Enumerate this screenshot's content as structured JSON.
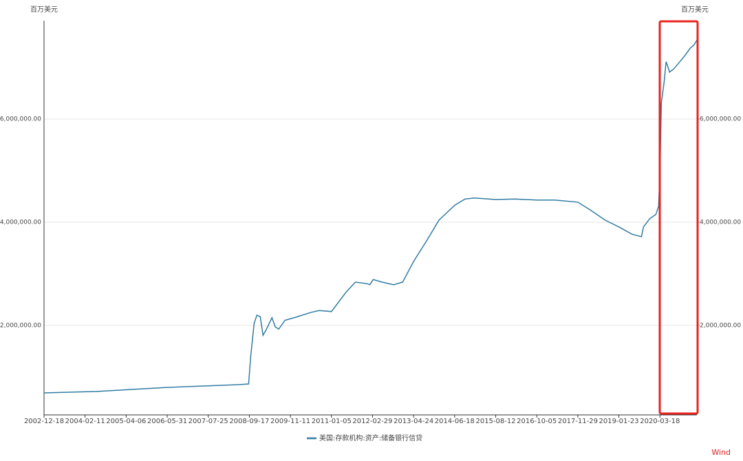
{
  "chart_data": {
    "type": "line",
    "y_label": "百万美元",
    "y2_label": "百万美元",
    "source": "Wind",
    "x": [
      "2002-12-18",
      "2004-06-02",
      "2005-06-01",
      "2006-06-07",
      "2007-06-06",
      "2008-06-04",
      "2008-09-10",
      "2008-10-01",
      "2008-11-05",
      "2008-12-03",
      "2009-01-07",
      "2009-02-04",
      "2009-03-04",
      "2009-05-06",
      "2009-06-10",
      "2009-07-15",
      "2009-09-16",
      "2010-01-06",
      "2010-06-02",
      "2010-09-01",
      "2011-01-05",
      "2011-06-01",
      "2011-09-07",
      "2012-01-04",
      "2012-02-01",
      "2012-03-07",
      "2012-06-06",
      "2012-10-03",
      "2013-01-02",
      "2013-04-24",
      "2013-09-04",
      "2014-01-08",
      "2014-06-18",
      "2014-10-01",
      "2015-01-07",
      "2015-08-12",
      "2016-03-02",
      "2016-10-05",
      "2017-04-05",
      "2017-11-29",
      "2018-04-04",
      "2018-09-05",
      "2019-01-23",
      "2019-06-05",
      "2019-09-11",
      "2019-10-02",
      "2019-12-04",
      "2020-02-05",
      "2020-03-04",
      "2020-03-18",
      "2020-04-01",
      "2020-04-29",
      "2020-05-20",
      "2020-06-03",
      "2020-06-24",
      "2020-08-05",
      "2020-10-07",
      "2020-12-02",
      "2021-01-20",
      "2021-03-03",
      "2021-03-31"
    ],
    "series": [
      {
        "name": "美国:存款机构:资产:储备银行信贷",
        "color": "#2f7ba3",
        "values": [
          693000,
          720000,
          760000,
          800000,
          827000,
          853000,
          867000,
          1400000,
          2040000,
          2200000,
          2170000,
          1810000,
          1900000,
          2150000,
          1970000,
          1930000,
          2100000,
          2160000,
          2250000,
          2290000,
          2270000,
          2640000,
          2840000,
          2810000,
          2790000,
          2890000,
          2840000,
          2790000,
          2840000,
          3240000,
          3640000,
          4040000,
          4330000,
          4450000,
          4470000,
          4440000,
          4450000,
          4430000,
          4430000,
          4390000,
          4240000,
          4040000,
          3910000,
          3770000,
          3720000,
          3910000,
          4070000,
          4150000,
          4310000,
          4970000,
          6310000,
          6710000,
          7110000,
          7040000,
          6910000,
          6970000,
          7110000,
          7240000,
          7370000,
          7440000,
          7530000
        ]
      }
    ],
    "xlim": [
      "2002-12-18",
      "2021-03-31"
    ],
    "xticks": [
      "2002-12-18",
      "2004-02-11",
      "2005-04-06",
      "2006-05-31",
      "2007-07-25",
      "2008-09-17",
      "2009-11-11",
      "2011-01-05",
      "2012-02-29",
      "2013-04-24",
      "2014-06-18",
      "2015-08-12",
      "2016-10-05",
      "2017-11-29",
      "2019-01-23",
      "2020-03-18"
    ],
    "ylim": [
      266667,
      7906667
    ],
    "yticks": [
      {
        "value": 2000000,
        "label": "2,000,000.00"
      },
      {
        "value": 4000000,
        "label": "4,000,000.00"
      },
      {
        "value": 6000000,
        "label": "6,000,000.00"
      }
    ],
    "y2lim": [
      266667,
      7906667
    ],
    "y2ticks": [
      {
        "value": 2000000,
        "label": "2,000,000.00"
      },
      {
        "value": 4000000,
        "label": "4,000,000.00"
      },
      {
        "value": 6000000,
        "label": "6,000,000.00"
      }
    ],
    "grid": true
  }
}
